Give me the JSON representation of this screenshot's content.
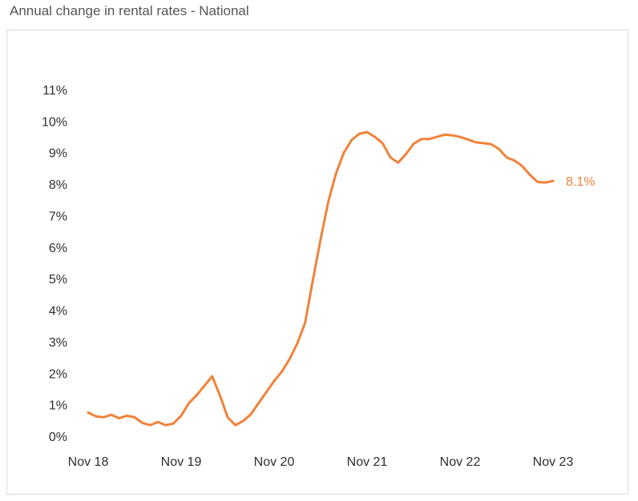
{
  "title": "Annual change in rental rates - National",
  "colors": {
    "line": "#f0823a",
    "text": "#2b2f33",
    "border": "#dcdcdc"
  },
  "chart_data": {
    "type": "line",
    "title": "Annual change in rental rates - National",
    "xlabel": "",
    "ylabel": "",
    "x_tick_labels": [
      "Nov 18",
      "Nov 19",
      "Nov 20",
      "Nov 21",
      "Nov 22",
      "Nov 23"
    ],
    "y_tick_labels": [
      "0%",
      "1%",
      "2%",
      "3%",
      "4%",
      "5%",
      "6%",
      "7%",
      "8%",
      "9%",
      "10%",
      "11%"
    ],
    "ylim": [
      0,
      11
    ],
    "grid": false,
    "end_label": "8.1%",
    "series": [
      {
        "name": "",
        "color": "#f0823a",
        "x": [
          "Nov 18",
          "Dec 18",
          "Jan 19",
          "Feb 19",
          "Mar 19",
          "Apr 19",
          "May 19",
          "Jun 19",
          "Jul 19",
          "Aug 19",
          "Sep 19",
          "Oct 19",
          "Nov 19",
          "Dec 19",
          "Jan 20",
          "Feb 20",
          "Mar 20",
          "Apr 20",
          "May 20",
          "Jun 20",
          "Jul 20",
          "Aug 20",
          "Sep 20",
          "Oct 20",
          "Nov 20",
          "Dec 20",
          "Jan 21",
          "Feb 21",
          "Mar 21",
          "Apr 21",
          "May 21",
          "Jun 21",
          "Jul 21",
          "Aug 21",
          "Sep 21",
          "Oct 21",
          "Nov 21",
          "Dec 21",
          "Jan 22",
          "Feb 22",
          "Mar 22",
          "Apr 22",
          "May 22",
          "Jun 22",
          "Jul 22",
          "Aug 22",
          "Sep 22",
          "Oct 22",
          "Nov 22",
          "Dec 22",
          "Jan 23",
          "Feb 23",
          "Mar 23",
          "Apr 23",
          "May 23",
          "Jun 23",
          "Jul 23",
          "Aug 23",
          "Sep 23",
          "Oct 23",
          "Nov 23"
        ],
        "values": [
          0.75,
          0.63,
          0.6,
          0.68,
          0.57,
          0.65,
          0.6,
          0.42,
          0.35,
          0.45,
          0.35,
          0.4,
          0.65,
          1.05,
          1.3,
          1.6,
          1.9,
          1.3,
          0.6,
          0.35,
          0.48,
          0.7,
          1.05,
          1.4,
          1.75,
          2.05,
          2.45,
          2.95,
          3.6,
          4.95,
          6.25,
          7.45,
          8.35,
          9.0,
          9.4,
          9.6,
          9.65,
          9.5,
          9.3,
          8.85,
          8.68,
          8.95,
          9.28,
          9.43,
          9.43,
          9.5,
          9.57,
          9.55,
          9.5,
          9.42,
          9.33,
          9.3,
          9.27,
          9.12,
          8.85,
          8.75,
          8.58,
          8.3,
          8.07,
          8.05,
          8.1
        ]
      }
    ]
  }
}
